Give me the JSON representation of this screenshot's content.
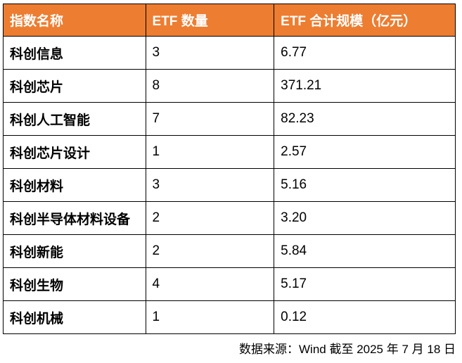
{
  "table": {
    "columns": [
      "指数名称",
      "ETF 数量",
      "ETF 合计规模（亿元）"
    ],
    "rows": [
      {
        "name": "科创信息",
        "count": "3",
        "scale": "6.77"
      },
      {
        "name": "科创芯片",
        "count": "8",
        "scale": "371.21"
      },
      {
        "name": "科创人工智能",
        "count": "7",
        "scale": "82.23"
      },
      {
        "name": "科创芯片设计",
        "count": "1",
        "scale": "2.57"
      },
      {
        "name": "科创材料",
        "count": "3",
        "scale": "5.16"
      },
      {
        "name": "科创半导体材料设备",
        "count": "2",
        "scale": "3.20"
      },
      {
        "name": "科创新能",
        "count": "2",
        "scale": "5.84"
      },
      {
        "name": "科创生物",
        "count": "4",
        "scale": "5.17"
      },
      {
        "name": "科创机械",
        "count": "1",
        "scale": "0.12"
      }
    ]
  },
  "footer": {
    "source_note": "数据来源：Wind 截至 2025 年 7 月 18 日"
  },
  "colors": {
    "header_bg": "#ED7D31",
    "header_text": "#FFFFFF",
    "body_text": "#000000",
    "border": "#000000"
  }
}
